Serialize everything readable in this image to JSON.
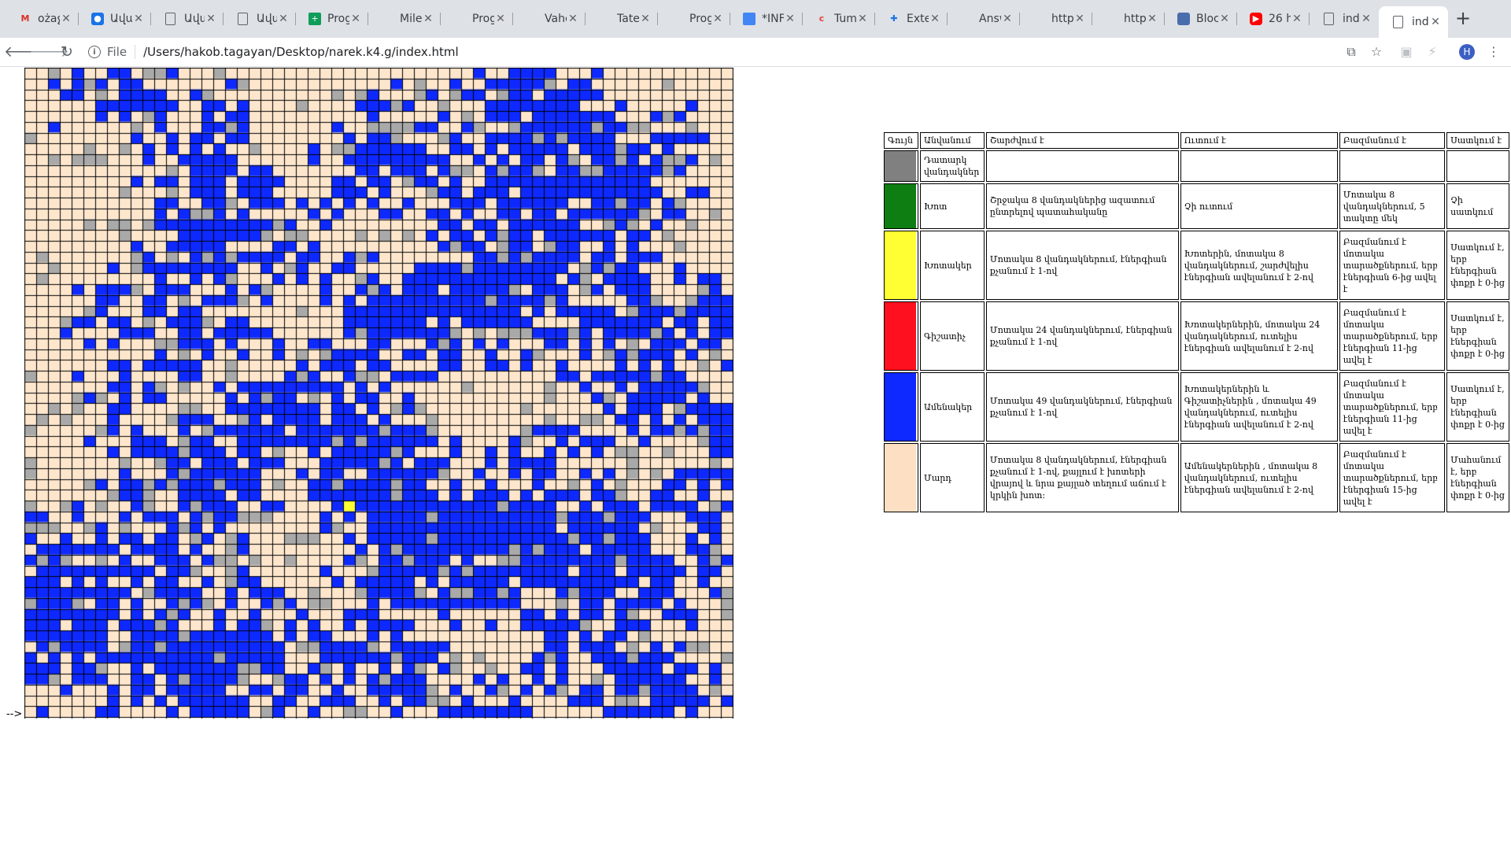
{
  "browser": {
    "tabs": [
      {
        "icon": "gmail-icon",
        "title": "ożaջ"
      },
      {
        "icon": "contacts-icon",
        "title": "Ավայ"
      },
      {
        "icon": "document-icon",
        "title": "Ավայ"
      },
      {
        "icon": "document-icon",
        "title": "Ավայ"
      },
      {
        "icon": "sheets-icon",
        "title": "Prog"
      },
      {
        "icon": "microsoft-icon",
        "title": "Miler"
      },
      {
        "icon": "microsoft-icon",
        "title": "Prog"
      },
      {
        "icon": "microsoft-icon",
        "title": "Vahe"
      },
      {
        "icon": "microsoft-icon",
        "title": "Tate"
      },
      {
        "icon": "microsoft-icon",
        "title": "Prog"
      },
      {
        "icon": "google-docs-icon",
        "title": "*INF"
      },
      {
        "icon": "tumblr-icon",
        "title": "Tumb"
      },
      {
        "icon": "extension-icon",
        "title": "Exte"
      },
      {
        "icon": "microsoft-icon",
        "title": "Answ"
      },
      {
        "icon": "microsoft-icon",
        "title": "https"
      },
      {
        "icon": "microsoft-icon",
        "title": "https"
      },
      {
        "icon": "blockly-icon",
        "title": "Block"
      },
      {
        "icon": "youtube-icon",
        "title": "26 h"
      },
      {
        "icon": "document-icon",
        "title": "index"
      },
      {
        "icon": "document-icon",
        "title": "index",
        "active": true
      }
    ],
    "new_tab_label": "+",
    "address": {
      "scheme_label": "File",
      "url": "/Users/hakob.tagayan/Desktop/narek.k4.g/index.html"
    },
    "profile_initial": "H"
  },
  "page": {
    "arrow_text": "-->",
    "grid": {
      "colors": {
        "0": "#fde6cc",
        "1": "#0d29ff",
        "2": "#a9a9a9",
        "3": "#ffff33"
      },
      "legend_color_names": [
        "wheat",
        "blue",
        "gray",
        "yellow"
      ]
    },
    "legend": {
      "headers": [
        "Գույն",
        "Անվանում",
        "Շարժվում է",
        "Ուտում է",
        "Բազմանում է",
        "Սատկում է"
      ],
      "rows": [
        {
          "color": "#808080",
          "name": "Դատարկ վանդակներ",
          "moves": "",
          "eats": "",
          "multiplies": "",
          "dies": ""
        },
        {
          "color": "#0e7e13",
          "name": "Խոտ",
          "moves": "Շրջակա 8 վանդակներից ազատում ընտրելով պատահականը",
          "eats": "Չի ուտում",
          "multiplies": "Մոտակա 8 վանդակներում, 5 տակտը մեկ",
          "dies": "Չի սատկում"
        },
        {
          "color": "#ffff33",
          "name": "Խոտակեր",
          "moves": "Մոտակա 8 վանդակներում, էներգիան քչանում է 1-ով",
          "eats": "Խոտերին, մոտակա 8 վանդակներում, շարժվելիս էներգիան ավելանում է 2-ով",
          "multiplies": "Բազմանում է մոտակա տարածքներում, երբ էներգիան 6-ից ավել է",
          "dies": "Սատկում է, երբ էներգիան փոքր է 0-ից"
        },
        {
          "color": "#ff101e",
          "name": "Գիշատիչ",
          "moves": "Մոտակա 24 վանդակներում, էներգիան քչանում է 1-ով",
          "eats": "Խոտակերներին, մոտակա 24 վանդակներում, ուտելիս էներգիան ավելանում է 2-ով",
          "multiplies": "Բազմանում է մոտակա տարածքներում, երբ էներգիան 11-ից ավել է",
          "dies": "Սատկում է, երբ էներգիան փոքր է 0-ից"
        },
        {
          "color": "#0d29ff",
          "name": "Ամենակեր",
          "moves": "Մոտակա 49 վանդակներում, էներգիան քչանում է 1-ով",
          "eats": "Խոտակերներին և Գիշատիչներին , մոտակա 49 վանդակներում, ուտելիս էներգիան ավելանում է 2-ով",
          "multiplies": "Բազմանում է մոտակա տարածքներում, երբ էներգիան 11-ից ավել է",
          "dies": "Սատկում է, երբ էներգիան փոքր է 0-ից"
        },
        {
          "color": "#fde0c3",
          "name": "Մարդ",
          "moves": "Մոտակա 8 վանդակներում, էներգիան քչանում է 1-ով, քայլում է խոտերի վրայով և նրա քայլած տեղում աճում է կրկին խոտ:",
          "eats": "Ամենակերներին , մոտակա 8 վանդակներում, ուտելիս էներգիան ավելանում է 2-ով",
          "multiplies": "Բազմանում է մոտակա տարածքներում, երբ էներգիան 15-ից ավել է",
          "dies": "Մահանում է, երբ էներգիան փոքր է 0-ից"
        }
      ]
    }
  }
}
